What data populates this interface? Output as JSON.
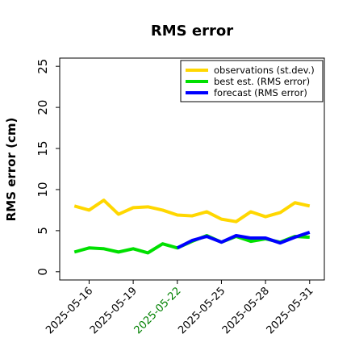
{
  "chart_data": {
    "type": "line",
    "title": "RMS error",
    "xlabel": "",
    "ylabel": "RMS error (cm)",
    "ylim": [
      -1,
      26
    ],
    "yticks": [
      0,
      5,
      10,
      15,
      20,
      25
    ],
    "x": [
      "2025-05-15",
      "2025-05-16",
      "2025-05-17",
      "2025-05-18",
      "2025-05-19",
      "2025-05-20",
      "2025-05-21",
      "2025-05-22",
      "2025-05-23",
      "2025-05-24",
      "2025-05-25",
      "2025-05-26",
      "2025-05-27",
      "2025-05-28",
      "2025-05-29",
      "2025-05-30",
      "2025-05-31"
    ],
    "xlim": [
      "2025-05-14",
      "2025-06-01"
    ],
    "xticks": [
      "2025-05-16",
      "2025-05-19",
      "2025-05-22",
      "2025-05-25",
      "2025-05-28",
      "2025-05-31"
    ],
    "highlight_tick": "2025-05-22",
    "highlight_color": "#008000",
    "grid": false,
    "legend_position": "top-right",
    "series": [
      {
        "name": "observations (st.dev.)",
        "color": "#FFD700",
        "values": [
          8.0,
          7.5,
          8.7,
          7.0,
          7.8,
          7.9,
          7.5,
          6.9,
          6.8,
          7.3,
          6.4,
          6.1,
          7.3,
          6.7,
          7.2,
          8.4,
          8.0
        ]
      },
      {
        "name": "best est. (RMS error)",
        "color": "#00E000",
        "values": [
          2.4,
          2.9,
          2.8,
          2.4,
          2.8,
          2.3,
          3.4,
          2.9,
          3.7,
          4.4,
          3.6,
          4.3,
          3.7,
          4.0,
          3.6,
          4.3,
          4.2
        ]
      },
      {
        "name": "forecast (RMS error)",
        "color": "#0000FF",
        "values": [
          null,
          null,
          null,
          null,
          null,
          null,
          null,
          2.9,
          3.8,
          4.3,
          3.6,
          4.4,
          4.1,
          4.1,
          3.5,
          4.2,
          4.8
        ]
      }
    ]
  }
}
